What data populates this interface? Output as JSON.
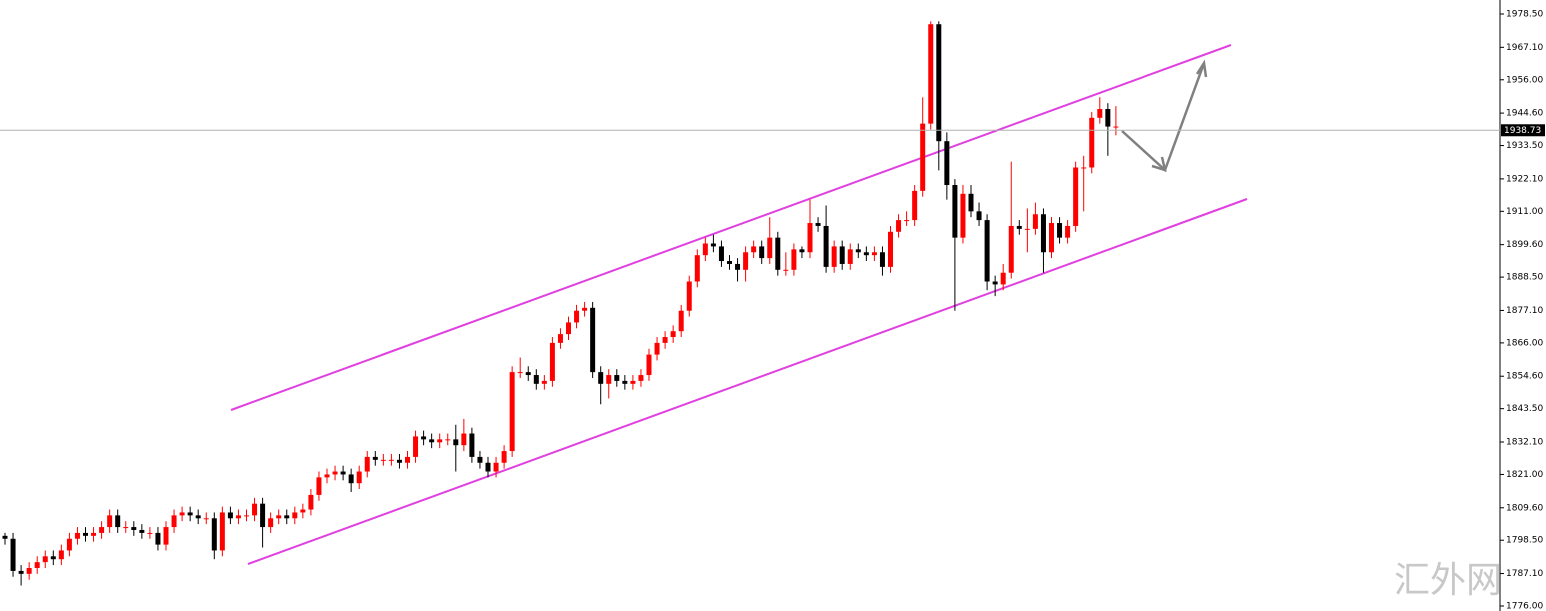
{
  "chart_data": {
    "type": "candlestick",
    "up_color": "#ff0000",
    "down_color": "#000000",
    "ylim": [
      1776,
      1978.5
    ],
    "yticks": [
      {
        "value": 1978.5,
        "label": "1978.50"
      },
      {
        "value": 1967.1,
        "label": "1967.10"
      },
      {
        "value": 1956,
        "label": "1956.00"
      },
      {
        "value": 1944.6,
        "label": "1944.60"
      },
      {
        "value": 1933.5,
        "label": "1933.50"
      },
      {
        "value": 1922.1,
        "label": "1922.10"
      },
      {
        "value": 1911,
        "label": "1911.00"
      },
      {
        "value": 1899.6,
        "label": "1899.60"
      },
      {
        "value": 1888.5,
        "label": "1888.50"
      },
      {
        "value": 1877.1,
        "label": "1877.10"
      },
      {
        "value": 1866,
        "label": "1866.00"
      },
      {
        "value": 1854.6,
        "label": "1854.60"
      },
      {
        "value": 1843.5,
        "label": "1843.50"
      },
      {
        "value": 1832.1,
        "label": "1832.10"
      },
      {
        "value": 1821,
        "label": "1821.00"
      },
      {
        "value": 1809.6,
        "label": "1809.60"
      },
      {
        "value": 1798.5,
        "label": "1798.50"
      },
      {
        "value": 1787.1,
        "label": "1787.10"
      },
      {
        "value": 1776,
        "label": "1776.00"
      }
    ],
    "current_price": 1938.73,
    "watermark": "汇外网",
    "ohlc": [
      [
        1800,
        1801,
        1797,
        1799
      ],
      [
        1799,
        1801,
        1786,
        1788
      ],
      [
        1788,
        1790,
        1783,
        1787
      ],
      [
        1787,
        1791,
        1785,
        1789
      ],
      [
        1789,
        1793,
        1787,
        1791
      ],
      [
        1791,
        1795,
        1789,
        1793
      ],
      [
        1793,
        1795,
        1790,
        1792
      ],
      [
        1792,
        1797,
        1790,
        1795
      ],
      [
        1795,
        1801,
        1793,
        1799
      ],
      [
        1799,
        1803,
        1797,
        1801
      ],
      [
        1801,
        1803,
        1798,
        1800
      ],
      [
        1800,
        1803,
        1798,
        1801
      ],
      [
        1801,
        1805,
        1799,
        1803
      ],
      [
        1803,
        1809,
        1801,
        1807
      ],
      [
        1807,
        1809,
        1801,
        1803
      ],
      [
        1803,
        1805,
        1801,
        1803
      ],
      [
        1803,
        1805,
        1800,
        1802
      ],
      [
        1802,
        1804,
        1799,
        1801
      ],
      [
        1801,
        1803,
        1799,
        1801
      ],
      [
        1801,
        1803,
        1795,
        1797
      ],
      [
        1797,
        1805,
        1795,
        1803
      ],
      [
        1803,
        1809,
        1801,
        1807
      ],
      [
        1807,
        1810,
        1805,
        1808
      ],
      [
        1808,
        1810,
        1805,
        1807
      ],
      [
        1807,
        1809,
        1804,
        1806
      ],
      [
        1806,
        1808,
        1804,
        1806
      ],
      [
        1806,
        1808,
        1792,
        1795
      ],
      [
        1795,
        1810,
        1793,
        1808
      ],
      [
        1808,
        1810,
        1804,
        1806
      ],
      [
        1806,
        1809,
        1804,
        1807
      ],
      [
        1807,
        1809,
        1805,
        1807
      ],
      [
        1807,
        1813,
        1805,
        1811
      ],
      [
        1811,
        1813,
        1796,
        1803
      ],
      [
        1803,
        1808,
        1801,
        1806
      ],
      [
        1806,
        1809,
        1804,
        1807
      ],
      [
        1807,
        1809,
        1804,
        1806
      ],
      [
        1806,
        1810,
        1804,
        1808
      ],
      [
        1808,
        1811,
        1806,
        1809
      ],
      [
        1809,
        1816,
        1807,
        1814
      ],
      [
        1814,
        1822,
        1812,
        1820
      ],
      [
        1820,
        1823,
        1818,
        1821
      ],
      [
        1821,
        1824,
        1819,
        1822
      ],
      [
        1822,
        1824,
        1819,
        1821
      ],
      [
        1821,
        1823,
        1815,
        1818
      ],
      [
        1818,
        1824,
        1816,
        1822
      ],
      [
        1822,
        1829,
        1820,
        1827
      ],
      [
        1827,
        1829,
        1824,
        1826
      ],
      [
        1826,
        1828,
        1824,
        1826
      ],
      [
        1826,
        1828,
        1824,
        1826
      ],
      [
        1826,
        1828,
        1823,
        1825
      ],
      [
        1825,
        1829,
        1823,
        1827
      ],
      [
        1827,
        1836,
        1825,
        1834
      ],
      [
        1834,
        1836,
        1831,
        1833
      ],
      [
        1833,
        1835,
        1830,
        1832
      ],
      [
        1832,
        1835,
        1830,
        1833
      ],
      [
        1833,
        1835,
        1831,
        1833
      ],
      [
        1833,
        1838,
        1822,
        1831
      ],
      [
        1831,
        1840,
        1829,
        1835
      ],
      [
        1835,
        1837,
        1825,
        1827
      ],
      [
        1827,
        1829,
        1823,
        1825
      ],
      [
        1825,
        1827,
        1820,
        1822
      ],
      [
        1822,
        1827,
        1820,
        1825
      ],
      [
        1825,
        1831,
        1823,
        1829
      ],
      [
        1829,
        1858,
        1827,
        1856
      ],
      [
        1856,
        1861,
        1854,
        1856
      ],
      [
        1856,
        1858,
        1853,
        1855
      ],
      [
        1855,
        1857,
        1850,
        1852
      ],
      [
        1852,
        1855,
        1850,
        1853
      ],
      [
        1853,
        1868,
        1851,
        1866
      ],
      [
        1866,
        1871,
        1864,
        1869
      ],
      [
        1869,
        1875,
        1867,
        1873
      ],
      [
        1873,
        1879,
        1871,
        1877
      ],
      [
        1877,
        1880,
        1875,
        1878
      ],
      [
        1878,
        1880,
        1854,
        1856
      ],
      [
        1856,
        1858,
        1845,
        1852
      ],
      [
        1852,
        1857,
        1847,
        1855
      ],
      [
        1855,
        1857,
        1851,
        1853
      ],
      [
        1853,
        1855,
        1850,
        1852
      ],
      [
        1852,
        1855,
        1850,
        1853
      ],
      [
        1853,
        1857,
        1851,
        1855
      ],
      [
        1855,
        1864,
        1853,
        1862
      ],
      [
        1862,
        1868,
        1860,
        1866
      ],
      [
        1866,
        1870,
        1864,
        1868
      ],
      [
        1868,
        1872,
        1866,
        1870
      ],
      [
        1870,
        1879,
        1868,
        1877
      ],
      [
        1877,
        1889,
        1875,
        1887
      ],
      [
        1887,
        1898,
        1885,
        1896
      ],
      [
        1896,
        1902,
        1894,
        1900
      ],
      [
        1900,
        1903,
        1897,
        1899
      ],
      [
        1899,
        1901,
        1892,
        1894
      ],
      [
        1894,
        1896,
        1891,
        1893
      ],
      [
        1893,
        1895,
        1887,
        1891
      ],
      [
        1891,
        1899,
        1887,
        1897
      ],
      [
        1897,
        1901,
        1895,
        1899
      ],
      [
        1899,
        1901,
        1893,
        1895
      ],
      [
        1895,
        1909,
        1893,
        1902
      ],
      [
        1902,
        1904,
        1889,
        1891
      ],
      [
        1891,
        1897,
        1889,
        1891
      ],
      [
        1891,
        1900,
        1889,
        1898
      ],
      [
        1898,
        1899,
        1895,
        1897
      ],
      [
        1897,
        1915,
        1895,
        1907
      ],
      [
        1907,
        1909,
        1904,
        1906
      ],
      [
        1906,
        1913,
        1890,
        1892
      ],
      [
        1892,
        1901,
        1890,
        1899
      ],
      [
        1899,
        1901,
        1891,
        1893
      ],
      [
        1893,
        1900,
        1891,
        1898
      ],
      [
        1898,
        1900,
        1895,
        1897
      ],
      [
        1897,
        1899,
        1894,
        1896
      ],
      [
        1896,
        1899,
        1894,
        1897
      ],
      [
        1897,
        1899,
        1889,
        1892
      ],
      [
        1892,
        1906,
        1890,
        1904
      ],
      [
        1904,
        1910,
        1902,
        1908
      ],
      [
        1908,
        1911,
        1906,
        1908
      ],
      [
        1908,
        1920,
        1906,
        1918
      ],
      [
        1918,
        1950,
        1916,
        1941
      ],
      [
        1941,
        1976,
        1939,
        1975
      ],
      [
        1975,
        1976,
        1925,
        1935
      ],
      [
        1935,
        1938,
        1915,
        1920
      ],
      [
        1920,
        1922,
        1877,
        1902
      ],
      [
        1902,
        1920,
        1900,
        1917
      ],
      [
        1917,
        1920,
        1909,
        1911
      ],
      [
        1911,
        1914,
        1906,
        1908
      ],
      [
        1908,
        1910,
        1884,
        1887
      ],
      [
        1887,
        1889,
        1882,
        1886
      ],
      [
        1886,
        1893,
        1884,
        1890
      ],
      [
        1890,
        1928,
        1888,
        1906
      ],
      [
        1906,
        1908,
        1903,
        1905
      ],
      [
        1905,
        1912,
        1897,
        1905
      ],
      [
        1905,
        1914,
        1903,
        1910
      ],
      [
        1910,
        1912,
        1890,
        1897
      ],
      [
        1897,
        1909,
        1895,
        1907
      ],
      [
        1907,
        1909,
        1900,
        1902
      ],
      [
        1902,
        1908,
        1900,
        1906
      ],
      [
        1906,
        1928,
        1904,
        1926
      ],
      [
        1926,
        1930,
        1911,
        1926
      ],
      [
        1926,
        1945,
        1924,
        1943
      ],
      [
        1943,
        1950,
        1941,
        1946
      ],
      [
        1946,
        1948,
        1930,
        1940
      ],
      [
        1940,
        1947,
        1937,
        1940
      ]
    ]
  }
}
